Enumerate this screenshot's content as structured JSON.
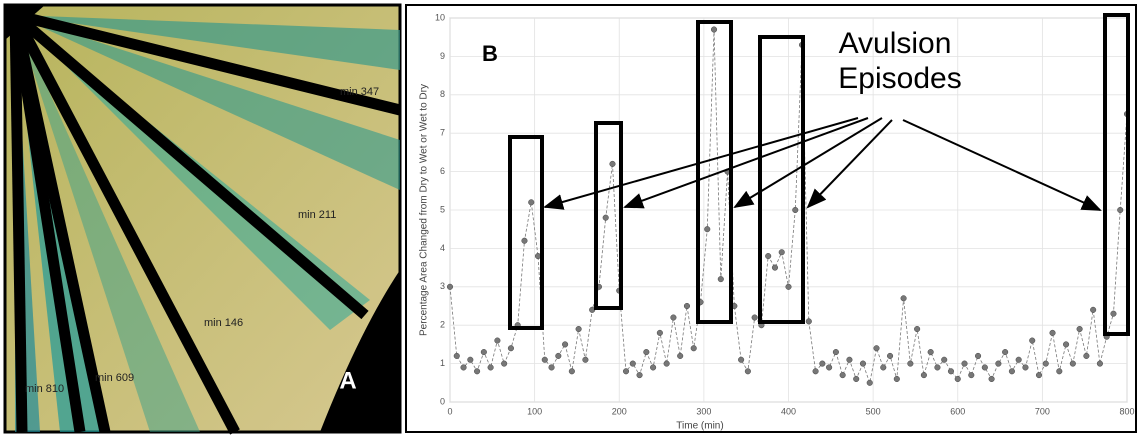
{
  "panel_a": {
    "label": "A",
    "annotations": [
      "min 347",
      "min 211",
      "min 146",
      "min 609",
      "min 810"
    ]
  },
  "chart_data": {
    "type": "scatter",
    "panel_label": "B",
    "xlabel": "Time (min)",
    "ylabel": "Percentage Area Changed from Dry to Wet or Wet to Dry",
    "annotation": [
      "Avulsion",
      "Episodes"
    ],
    "xlim": [
      0,
      800
    ],
    "ylim": [
      0,
      10
    ],
    "xticks": [
      0,
      100,
      200,
      300,
      400,
      500,
      600,
      700,
      800
    ],
    "yticks": [
      0,
      1,
      2,
      3,
      4,
      5,
      6,
      7,
      8,
      9,
      10
    ],
    "grid": true,
    "line_style": "dashed",
    "series": [
      {
        "color": "#777777",
        "x": [
          0,
          8,
          16,
          24,
          32,
          40,
          48,
          56,
          64,
          72,
          80,
          88,
          96,
          104,
          112,
          120,
          128,
          136,
          144,
          152,
          160,
          168,
          176,
          184,
          192,
          200,
          208,
          216,
          224,
          232,
          240,
          248,
          256,
          264,
          272,
          280,
          288,
          296,
          304,
          312,
          320,
          328,
          336,
          344,
          352,
          360,
          368,
          376,
          384,
          392,
          400,
          408,
          416,
          424,
          432,
          440,
          448,
          456,
          464,
          472,
          480,
          488,
          496,
          504,
          512,
          520,
          528,
          536,
          544,
          552,
          560,
          568,
          576,
          584,
          592,
          600,
          608,
          616,
          624,
          632,
          640,
          648,
          656,
          664,
          672,
          680,
          688,
          696,
          704,
          712,
          720,
          728,
          736,
          744,
          752,
          760,
          768,
          776,
          784,
          792,
          800
        ],
        "values": [
          3.0,
          1.2,
          0.9,
          1.1,
          0.8,
          1.3,
          0.9,
          1.6,
          1.0,
          1.4,
          2.0,
          4.2,
          5.2,
          3.8,
          1.1,
          0.9,
          1.2,
          1.5,
          0.8,
          1.9,
          1.1,
          2.4,
          3.0,
          4.8,
          6.2,
          2.9,
          0.8,
          1.0,
          0.7,
          1.3,
          0.9,
          1.8,
          1.0,
          2.2,
          1.2,
          2.5,
          1.4,
          2.6,
          4.5,
          9.7,
          3.2,
          6.0,
          2.5,
          1.1,
          0.8,
          2.2,
          2.0,
          3.8,
          3.5,
          3.9,
          3.0,
          5.0,
          9.3,
          2.1,
          0.8,
          1.0,
          0.9,
          1.3,
          0.7,
          1.1,
          0.6,
          1.0,
          0.5,
          1.4,
          0.9,
          1.2,
          0.6,
          2.7,
          1.0,
          1.9,
          0.7,
          1.3,
          0.9,
          1.1,
          0.8,
          0.6,
          1.0,
          0.7,
          1.2,
          0.9,
          0.6,
          1.0,
          1.3,
          0.8,
          1.1,
          0.9,
          1.6,
          0.7,
          1.0,
          1.8,
          0.8,
          1.5,
          1.0,
          1.9,
          1.2,
          2.4,
          1.0,
          1.7,
          2.3,
          5.0,
          7.5
        ]
      }
    ]
  }
}
